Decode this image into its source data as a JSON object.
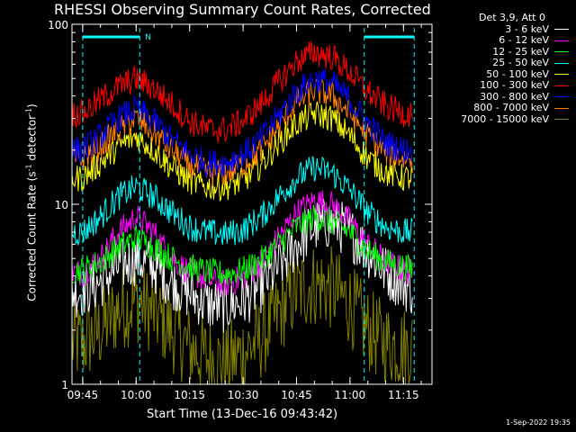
{
  "title": "RHESSI Observing Summary Count Rates, Corrected",
  "legend_header": "Det 3,9, Att 0",
  "footer": "1-Sep-2022 19:35",
  "ylabel_parts": {
    "a": "Corrected Count Rate (s",
    "b": "-1",
    "c": " detector",
    "d": "-1",
    "e": ")"
  },
  "chart_data": {
    "type": "line",
    "title": "RHESSI Observing Summary Count Rates, Corrected",
    "xlabel": "Start Time (13-Dec-16 09:43:42)",
    "ylabel": "Corrected Count Rate (s^-1 detector^-1)",
    "y_scale": "log",
    "ylim": [
      1,
      100
    ],
    "xlim": [
      "09:42:00",
      "11:23:00"
    ],
    "x_ticks": [
      "09:45",
      "10:00",
      "10:15",
      "10:30",
      "10:45",
      "11:00",
      "11:15"
    ],
    "y_ticks": [
      "1",
      "10",
      "100"
    ],
    "x": [
      "09:45",
      "09:50",
      "09:55",
      "10:00",
      "10:05",
      "10:10",
      "10:15",
      "10:20",
      "10:25",
      "10:30",
      "10:35",
      "10:40",
      "10:45",
      "10:50",
      "10:55",
      "11:00",
      "11:05",
      "11:10",
      "11:15",
      "11:17"
    ],
    "series": [
      {
        "name": "3 - 6 keV",
        "color": "#ffffff",
        "values": [
          3.3,
          3.7,
          4.5,
          5.0,
          4.5,
          3.7,
          3.2,
          2.8,
          2.7,
          2.9,
          3.5,
          4.5,
          6.0,
          7.5,
          8.0,
          7.0,
          5.5,
          4.2,
          3.6,
          3.4
        ]
      },
      {
        "name": "6 - 12 keV",
        "color": "#ff00ff",
        "values": [
          4.2,
          5.0,
          7.0,
          8.5,
          7.0,
          5.0,
          4.2,
          3.8,
          3.6,
          3.9,
          4.8,
          6.5,
          9.0,
          10.5,
          10.0,
          8.0,
          6.0,
          4.8,
          4.3,
          4.2
        ]
      },
      {
        "name": "12 - 25 keV",
        "color": "#00ff00",
        "values": [
          4.3,
          4.8,
          5.8,
          6.5,
          5.8,
          5.0,
          4.5,
          4.2,
          4.1,
          4.3,
          4.9,
          6.0,
          7.5,
          8.5,
          8.0,
          7.0,
          5.5,
          4.8,
          4.5,
          4.4
        ]
      },
      {
        "name": "25 - 50 keV",
        "color": "#00ffff",
        "values": [
          7.0,
          8.5,
          11.0,
          12.5,
          11.0,
          9.0,
          7.5,
          7.0,
          6.8,
          7.2,
          8.5,
          11.0,
          14.0,
          16.0,
          15.0,
          12.0,
          9.0,
          7.5,
          7.0,
          7.0
        ]
      },
      {
        "name": "50 - 100 keV",
        "color": "#ffff00",
        "values": [
          14.0,
          17.0,
          21.0,
          24.0,
          20.0,
          16.0,
          13.5,
          12.5,
          12.5,
          13.5,
          16.5,
          22.0,
          28.0,
          32.0,
          30.0,
          24.0,
          18.0,
          15.0,
          14.0,
          14.0
        ]
      },
      {
        "name": "100 - 300 keV",
        "color": "#ff0000",
        "values": [
          32.0,
          38.0,
          45.0,
          50.0,
          44.0,
          36.0,
          29.0,
          26.0,
          26.0,
          29.0,
          36.0,
          48.0,
          62.0,
          70.0,
          66.0,
          54.0,
          42.0,
          35.0,
          32.0,
          32.0
        ]
      },
      {
        "name": "300 - 800 keV",
        "color": "#0000ff",
        "values": [
          20.0,
          24.0,
          30.0,
          34.0,
          29.0,
          23.0,
          19.0,
          17.0,
          17.0,
          19.0,
          23.0,
          31.0,
          42.0,
          50.0,
          47.0,
          38.0,
          28.0,
          22.0,
          20.0,
          20.0
        ]
      },
      {
        "name": "800 - 7000 keV",
        "color": "#ff8000",
        "values": [
          18.0,
          21.0,
          26.0,
          30.0,
          25.0,
          20.0,
          16.5,
          15.0,
          15.0,
          16.5,
          20.0,
          27.0,
          37.0,
          43.0,
          40.0,
          32.0,
          24.0,
          19.5,
          18.0,
          18.0
        ]
      },
      {
        "name": "7000 - 15000 keV",
        "color": "#808000",
        "values": [
          1.7,
          2.0,
          2.6,
          2.9,
          2.5,
          2.0,
          1.6,
          1.4,
          1.3,
          1.5,
          1.8,
          2.5,
          3.3,
          3.6,
          3.4,
          2.8,
          2.0,
          1.7,
          1.6,
          1.6
        ]
      }
    ],
    "annotations": [
      {
        "type": "marker-bar",
        "label": "N",
        "color": "#00ffff",
        "x_start": "09:45",
        "x_end": "10:01"
      },
      {
        "type": "marker-bar",
        "label": "",
        "color": "#00ffff",
        "x_start": "11:04",
        "x_end": "11:18"
      }
    ],
    "legend_position": "top-right-outside",
    "grid": false
  }
}
